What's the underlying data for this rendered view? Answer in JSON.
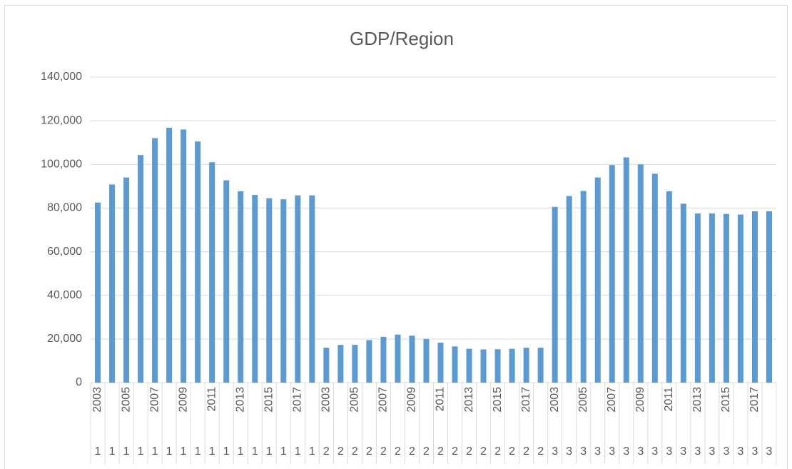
{
  "chart_data": {
    "type": "bar",
    "title": "GDP/Region",
    "categories": [
      "2003",
      null,
      "2005",
      null,
      "2007",
      null,
      "2009",
      null,
      "2011",
      null,
      "2013",
      null,
      "2015",
      null,
      "2017",
      null,
      "2003",
      null,
      "2005",
      null,
      "2007",
      null,
      "2009",
      null,
      "2011",
      null,
      "2013",
      null,
      "2015",
      null,
      "2017",
      null,
      "2003",
      null,
      "2005",
      null,
      "2007",
      null,
      "2009",
      null,
      "2011",
      null,
      "2013",
      null,
      "2015",
      null,
      "2017",
      null
    ],
    "category_groups": [
      "1",
      "1",
      "1",
      "1",
      "1",
      "1",
      "1",
      "1",
      "1",
      "1",
      "1",
      "1",
      "1",
      "1",
      "1",
      "1",
      "2",
      "2",
      "2",
      "2",
      "2",
      "2",
      "2",
      "2",
      "2",
      "2",
      "2",
      "2",
      "2",
      "2",
      "2",
      "2",
      "3",
      "3",
      "3",
      "3",
      "3",
      "3",
      "3",
      "3",
      "3",
      "3",
      "3",
      "3",
      "3",
      "3",
      "3",
      "3"
    ],
    "values": [
      82500,
      90800,
      94000,
      104300,
      112000,
      116800,
      116000,
      110500,
      101000,
      92700,
      87700,
      86000,
      84500,
      84000,
      85800,
      85800,
      16000,
      17300,
      17300,
      19500,
      21000,
      22000,
      21500,
      20000,
      18300,
      16600,
      15500,
      15200,
      15300,
      15500,
      16000,
      16000,
      80500,
      85500,
      87800,
      94000,
      99700,
      103200,
      100000,
      95700,
      87700,
      82000,
      77500,
      77500,
      77300,
      77000,
      78500,
      78500
    ],
    "color": "#5b9bd5",
    "ylim": [
      0,
      140000
    ],
    "yticks": [
      0,
      {
        "value": 20000,
        "label": "20,000"
      },
      {
        "value": 40000,
        "label": "40,000"
      },
      {
        "value": 60000,
        "label": "60,000"
      },
      {
        "value": 80000,
        "label": "80,000"
      },
      {
        "value": 100000,
        "label": "100,000"
      },
      {
        "value": 120000,
        "label": "120,000"
      },
      {
        "value": 140000,
        "label": "140,000"
      }
    ],
    "grid": true
  }
}
